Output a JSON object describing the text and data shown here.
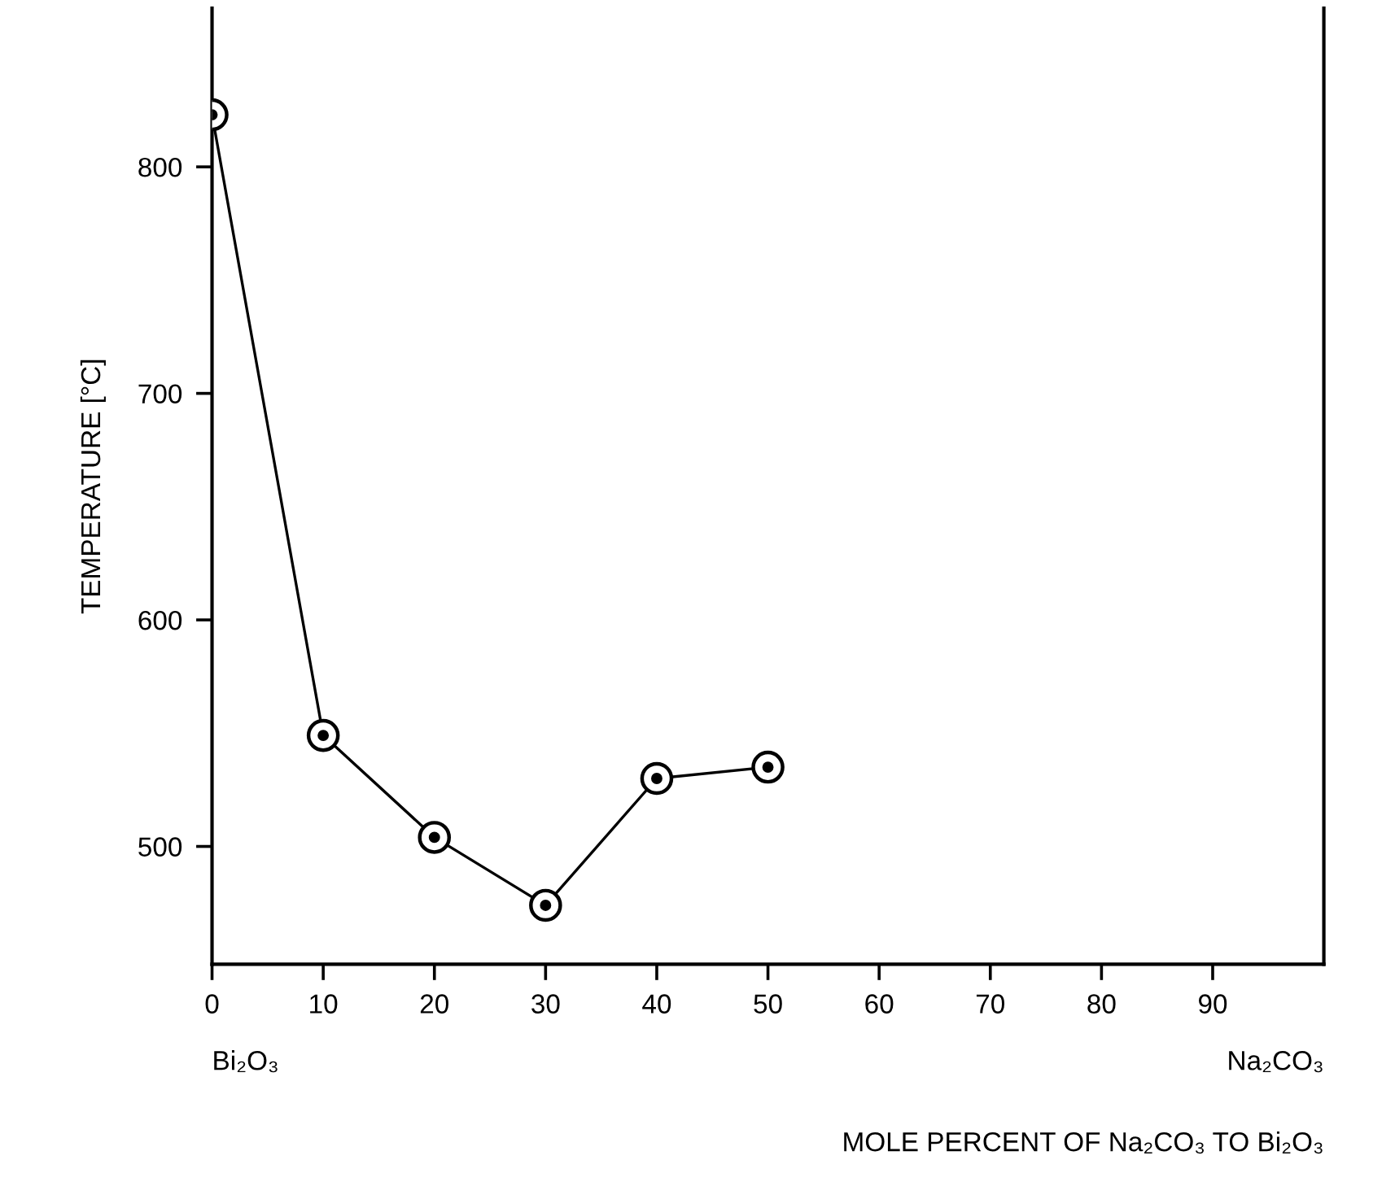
{
  "chart_data": {
    "type": "line",
    "xlabel": "MOLE PERCENT OF Na₂CO₃ TO Bi₂O₃",
    "ylabel": "TEMPERATURE [°C]",
    "x": [
      0,
      10,
      20,
      30,
      40,
      50
    ],
    "series": [
      {
        "color": "#000000",
        "values": [
          823,
          549,
          504,
          474,
          530,
          535
        ]
      }
    ],
    "xlim": [
      0,
      100
    ],
    "xticks": [
      0,
      10,
      20,
      30,
      40,
      50,
      60,
      70,
      80,
      90
    ],
    "ylim": [
      448,
      870
    ],
    "yticks": [
      500,
      600,
      700,
      800
    ],
    "marker": "circle",
    "line_style": "solid",
    "grid": false,
    "legend": false,
    "annotations": [
      "Bi₂O₃",
      "Na₂CO₃"
    ]
  }
}
